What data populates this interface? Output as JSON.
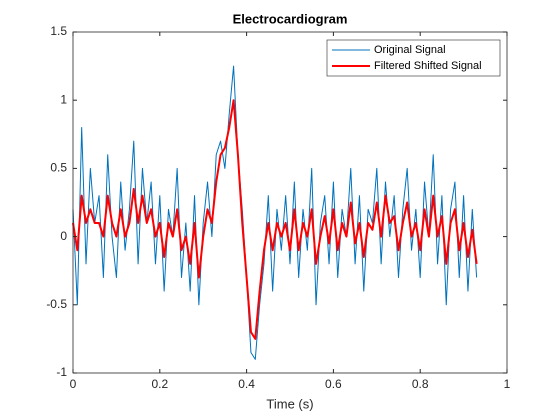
{
  "chart_data": {
    "type": "line",
    "title": "Electrocardiogram",
    "xlabel": "Time (s)",
    "x": [
      0,
      0.01,
      0.02,
      0.03,
      0.04,
      0.05,
      0.06,
      0.07,
      0.08,
      0.09,
      0.1,
      0.11,
      0.12,
      0.13,
      0.14,
      0.15,
      0.16,
      0.17,
      0.18,
      0.19,
      0.2,
      0.21,
      0.22,
      0.23,
      0.24,
      0.25,
      0.26,
      0.27,
      0.28,
      0.29,
      0.3,
      0.31,
      0.32,
      0.33,
      0.34,
      0.35,
      0.36,
      0.37,
      0.38,
      0.39,
      0.4,
      0.41,
      0.42,
      0.43,
      0.44,
      0.45,
      0.46,
      0.47,
      0.48,
      0.49,
      0.5,
      0.51,
      0.52,
      0.53,
      0.54,
      0.55,
      0.56,
      0.57,
      0.58,
      0.59,
      0.6,
      0.61,
      0.62,
      0.63,
      0.64,
      0.65,
      0.66,
      0.67,
      0.68,
      0.69,
      0.7,
      0.71,
      0.72,
      0.73,
      0.74,
      0.75,
      0.76,
      0.77,
      0.78,
      0.79,
      0.8,
      0.81,
      0.82,
      0.83,
      0.84,
      0.85,
      0.86,
      0.87,
      0.88,
      0.89,
      0.9,
      0.91,
      0.92,
      0.93
    ],
    "series": [
      {
        "name": "Original Signal",
        "color": "#0072bd",
        "width": 1,
        "values": [
          0.2,
          -0.5,
          0.8,
          -0.2,
          0.5,
          0.1,
          0.3,
          -0.3,
          0.6,
          0.0,
          -0.3,
          0.4,
          -0.1,
          0.2,
          0.7,
          -0.2,
          0.5,
          0.1,
          0.4,
          -0.2,
          0.3,
          -0.4,
          0.2,
          0.0,
          0.5,
          -0.3,
          0.1,
          -0.4,
          0.3,
          -0.5,
          0.1,
          0.4,
          0.0,
          0.6,
          0.7,
          0.5,
          0.9,
          1.25,
          0.6,
          0.2,
          -0.3,
          -0.85,
          -0.9,
          -0.5,
          -0.2,
          0.3,
          -0.4,
          0.2,
          -0.1,
          0.3,
          -0.2,
          0.4,
          -0.3,
          0.2,
          -0.1,
          0.5,
          -0.5,
          0.1,
          0.3,
          -0.2,
          0.4,
          -0.3,
          0.2,
          0.0,
          0.5,
          -0.2,
          0.3,
          -0.4,
          0.2,
          0.1,
          0.5,
          -0.2,
          0.4,
          0.0,
          0.3,
          -0.3,
          0.2,
          0.5,
          -0.1,
          0.2,
          -0.3,
          0.4,
          0.0,
          0.6,
          -0.2,
          0.3,
          -0.5,
          0.2,
          0.4,
          -0.3,
          0.3,
          -0.4,
          0.2,
          -0.3
        ]
      },
      {
        "name": "Filtered Shifted Signal",
        "color": "#ff0000",
        "width": 2,
        "values": [
          0.1,
          -0.1,
          0.3,
          0.1,
          0.2,
          0.1,
          0.1,
          0.0,
          0.3,
          0.1,
          0.0,
          0.2,
          0.0,
          0.1,
          0.35,
          0.1,
          0.3,
          0.1,
          0.2,
          0.0,
          0.1,
          -0.15,
          0.1,
          0.0,
          0.2,
          -0.1,
          0.0,
          -0.2,
          0.1,
          -0.3,
          0.0,
          0.2,
          0.1,
          0.4,
          0.6,
          0.65,
          0.8,
          1.0,
          0.6,
          0.1,
          -0.3,
          -0.7,
          -0.75,
          -0.4,
          -0.1,
          0.1,
          -0.1,
          0.1,
          0.0,
          0.1,
          -0.1,
          0.2,
          -0.1,
          0.1,
          0.0,
          0.2,
          -0.2,
          0.0,
          0.15,
          -0.05,
          0.2,
          -0.1,
          0.1,
          0.0,
          0.25,
          -0.05,
          0.1,
          -0.15,
          0.1,
          0.05,
          0.25,
          0.0,
          0.3,
          0.1,
          0.15,
          -0.1,
          0.1,
          0.25,
          0.0,
          0.1,
          -0.1,
          0.2,
          0.0,
          0.3,
          0.0,
          0.15,
          -0.2,
          0.1,
          0.2,
          -0.1,
          0.1,
          -0.15,
          0.05,
          -0.2
        ]
      }
    ],
    "xlim": [
      0,
      1
    ],
    "xticks": [
      0,
      0.2,
      0.4,
      0.6,
      0.8,
      1
    ],
    "ylim": [
      -1,
      1.5
    ],
    "yticks": [
      -1,
      -0.5,
      0,
      0.5,
      1,
      1.5
    ],
    "legend": "northeast",
    "grid": false
  }
}
